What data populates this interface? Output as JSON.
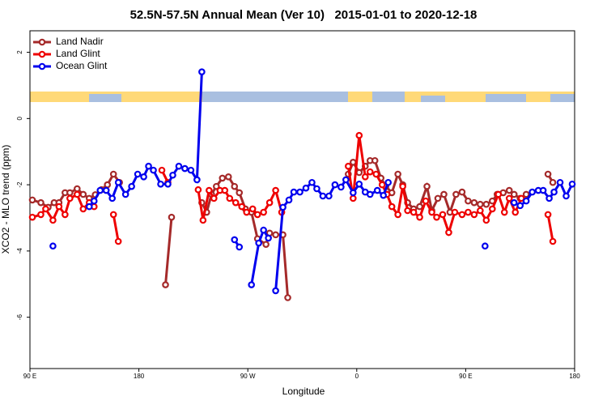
{
  "chart_data": {
    "type": "line",
    "title": "52.5N-57.5N Annual Mean (Ver 10)   2015-01-01 to 2020-12-18",
    "x_label": "Longitude",
    "y_label": "XCO2 - MLO trend (ppm)",
    "xlim": [
      90,
      540
    ],
    "ylim": [
      -7.55,
      2.65
    ],
    "xticks": [
      {
        "value": 90,
        "label": "90 E"
      },
      180,
      {
        "value": 270,
        "label": "90 W"
      },
      {
        "value": 360,
        "label": "0"
      },
      {
        "value": 450,
        "label": "90 E"
      },
      {
        "value": 540,
        "label": "180"
      }
    ],
    "yticks": [
      2,
      0,
      -2,
      -4,
      -6
    ],
    "legend": "top-left",
    "series": [
      {
        "name": "Land Nadir",
        "color": "#a52a2a",
        "x": [
          92,
          99,
          105,
          110,
          114,
          119,
          123,
          129,
          134,
          139,
          144,
          149,
          154,
          159,
          164,
          null,
          202,
          207,
          null,
          232,
          236,
          240,
          244,
          249,
          254,
          259,
          263,
          268,
          273,
          278,
          285,
          288,
          293,
          299,
          303,
          null,
          353,
          357,
          362,
          367,
          371,
          375,
          380,
          384,
          389,
          394,
          398,
          402,
          407,
          412,
          418,
          422,
          427,
          432,
          437,
          442,
          447,
          452,
          457,
          462,
          467,
          472,
          476,
          481,
          486,
          490,
          495,
          500,
          null,
          518,
          522
        ],
        "values": [
          -2.46,
          -2.54,
          -2.68,
          -2.54,
          -2.54,
          -2.24,
          -2.24,
          -2.12,
          -2.29,
          -2.41,
          -2.3,
          -2.15,
          -2.0,
          -1.68,
          -1.93,
          null,
          -5.02,
          -2.98,
          null,
          -2.54,
          -2.83,
          -2.29,
          -2.05,
          -1.8,
          -1.76,
          -2.05,
          -2.24,
          -2.73,
          -2.83,
          -3.63,
          -3.8,
          -3.46,
          -3.51,
          -3.51,
          -5.41,
          null,
          -1.68,
          -1.32,
          -1.63,
          -1.44,
          -1.27,
          -1.27,
          -1.8,
          -2.05,
          -2.24,
          -1.68,
          -2.0,
          -2.54,
          -2.73,
          -2.66,
          -2.05,
          -2.78,
          -2.41,
          -2.29,
          -2.83,
          -2.29,
          -2.22,
          -2.49,
          -2.54,
          -2.59,
          -2.59,
          -2.49,
          -2.29,
          -2.24,
          -2.17,
          -2.29,
          -2.41,
          -2.29,
          null,
          -1.68,
          -1.93
        ]
      },
      {
        "name": "Land Glint",
        "color": "#ee0000",
        "x": [
          92,
          99,
          103,
          109,
          114,
          119,
          123,
          129,
          134,
          139,
          143,
          null,
          159,
          163,
          null,
          199,
          204,
          null,
          229,
          233,
          238,
          242,
          247,
          251,
          255,
          260,
          265,
          269,
          274,
          278,
          283,
          288,
          293,
          298,
          null,
          353,
          357,
          362,
          367,
          371,
          376,
          381,
          385,
          389,
          394,
          398,
          402,
          407,
          412,
          417,
          422,
          426,
          431,
          436,
          441,
          447,
          452,
          457,
          462,
          467,
          472,
          477,
          482,
          486,
          491,
          496,
          null,
          518,
          522
        ],
        "values": [
          -2.98,
          -2.9,
          -2.73,
          -3.07,
          -2.66,
          -2.9,
          -2.41,
          -2.29,
          -2.73,
          -2.54,
          -2.66,
          null,
          -2.9,
          -3.71,
          null,
          -1.56,
          -1.93,
          null,
          -2.15,
          -3.07,
          -2.17,
          -2.41,
          -2.17,
          -2.17,
          -2.41,
          -2.54,
          -2.66,
          -2.83,
          -2.73,
          -2.9,
          -2.83,
          -2.54,
          -2.17,
          -2.83,
          null,
          -1.44,
          -2.41,
          -0.51,
          -1.76,
          -1.61,
          -1.68,
          -2.0,
          -2.29,
          -2.66,
          -2.9,
          -2.05,
          -2.78,
          -2.83,
          -2.98,
          -2.49,
          -2.83,
          -2.98,
          -2.9,
          -3.44,
          -2.83,
          -2.9,
          -2.83,
          -2.9,
          -2.78,
          -3.07,
          -2.73,
          -2.29,
          -2.83,
          -2.41,
          -2.83,
          -2.41,
          null,
          -2.9,
          -3.71
        ]
      },
      {
        "name": "Ocean Glint",
        "color": "#0000ee",
        "x": [
          109,
          null,
          139,
          143,
          148,
          153,
          158,
          163,
          169,
          174,
          179,
          184,
          188,
          192,
          198,
          204,
          208,
          213,
          218,
          223,
          228,
          232,
          null,
          259,
          263,
          null,
          273,
          279,
          283,
          287,
          null,
          293,
          299,
          304,
          308,
          313,
          318,
          323,
          327,
          332,
          337,
          342,
          347,
          351,
          357,
          362,
          367,
          371,
          377,
          382,
          386,
          null,
          466,
          null,
          490,
          495,
          500,
          505,
          510,
          514,
          519,
          523,
          528,
          533,
          538
        ],
        "values": [
          -3.85,
          null,
          -2.66,
          -2.49,
          -2.17,
          -2.17,
          -2.41,
          -1.93,
          -2.29,
          -2.05,
          -1.68,
          -1.76,
          -1.44,
          -1.56,
          -1.98,
          -1.98,
          -1.71,
          -1.44,
          -1.51,
          -1.56,
          -1.85,
          1.41,
          null,
          -3.66,
          -3.88,
          null,
          -5.02,
          -3.76,
          -3.37,
          -3.61,
          null,
          -5.2,
          -2.68,
          -2.46,
          -2.22,
          -2.22,
          -2.1,
          -1.93,
          -2.12,
          -2.34,
          -2.34,
          -2.0,
          -2.07,
          -1.85,
          -2.24,
          -1.98,
          -2.22,
          -2.29,
          -2.17,
          -2.32,
          -1.93,
          null,
          -3.85,
          null,
          -2.54,
          -2.63,
          -2.49,
          -2.22,
          -2.17,
          -2.17,
          -2.41,
          -2.22,
          -1.93,
          -2.34,
          -1.98
        ]
      }
    ]
  }
}
